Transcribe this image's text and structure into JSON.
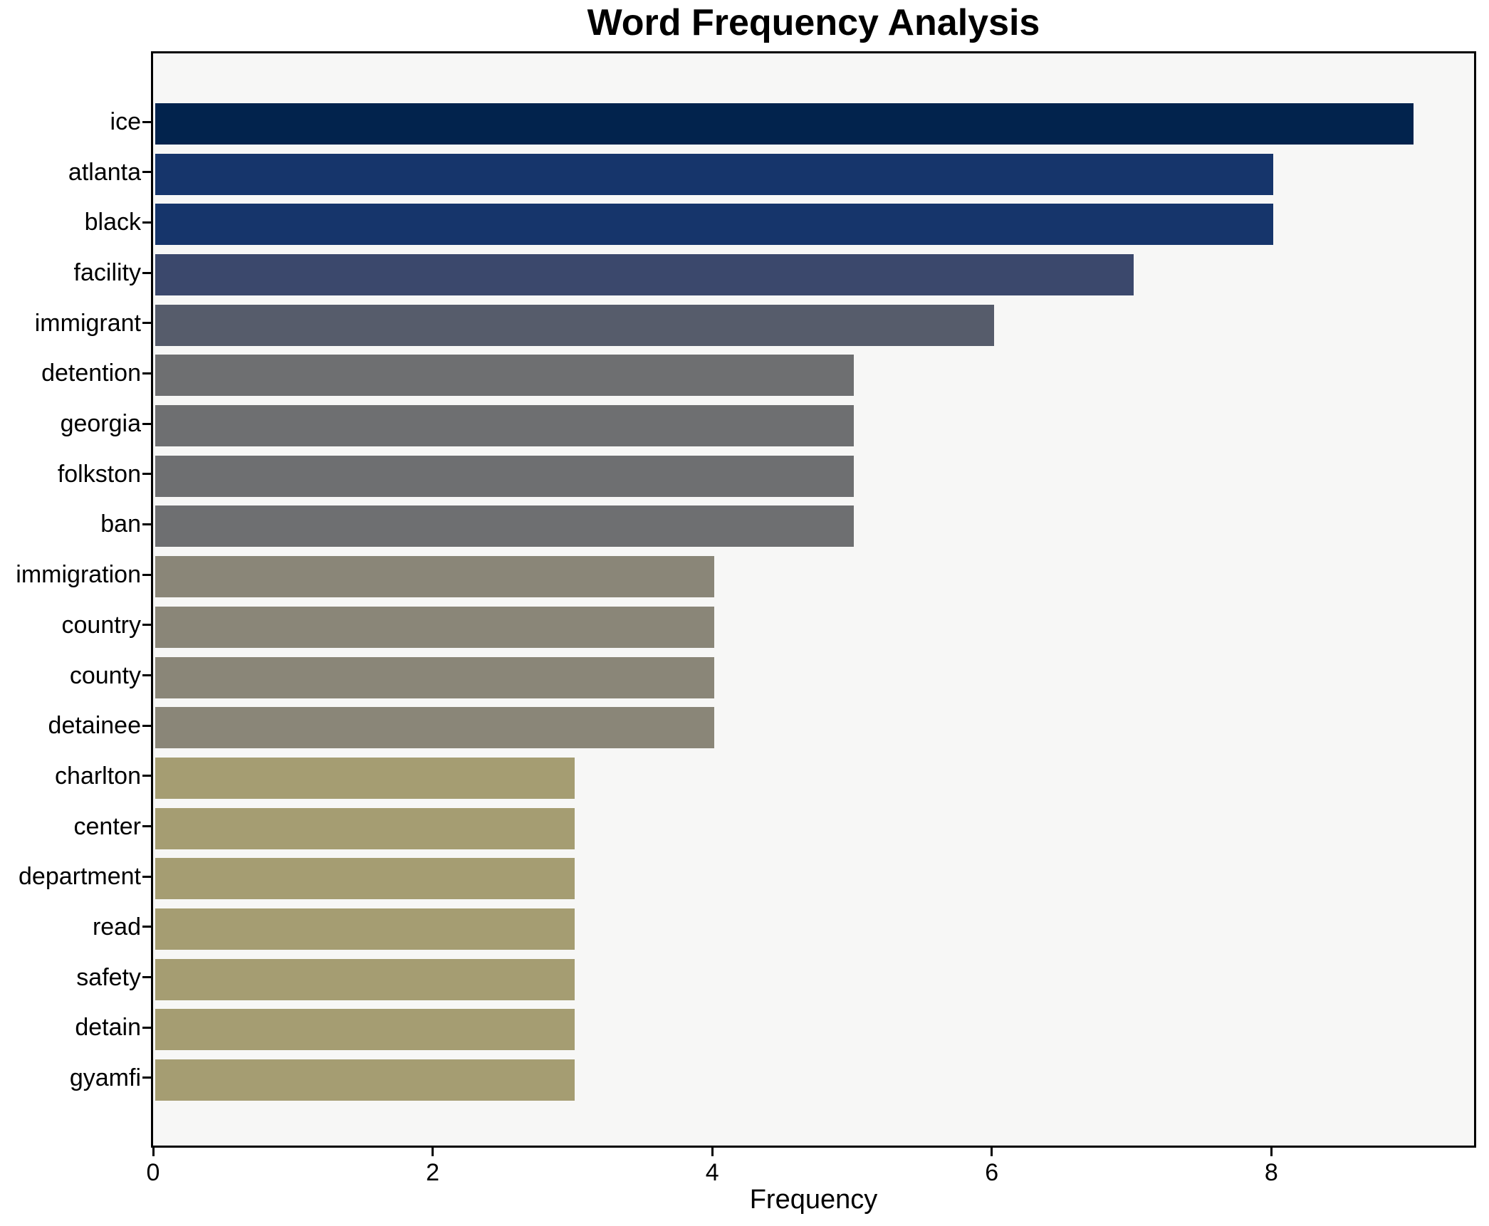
{
  "chart_data": {
    "type": "bar",
    "orientation": "horizontal",
    "title": "Word Frequency Analysis",
    "xlabel": "Frequency",
    "ylabel": "",
    "categories": [
      "ice",
      "atlanta",
      "black",
      "facility",
      "immigrant",
      "detention",
      "georgia",
      "folkston",
      "ban",
      "immigration",
      "country",
      "county",
      "detainee",
      "charlton",
      "center",
      "department",
      "read",
      "safety",
      "detain",
      "gyamfi"
    ],
    "values": [
      9,
      8,
      8,
      7,
      6,
      5,
      5,
      5,
      5,
      4,
      4,
      4,
      4,
      3,
      3,
      3,
      3,
      3,
      3,
      3
    ],
    "bar_colors": [
      "#02234d",
      "#16356b",
      "#16356b",
      "#3b486c",
      "#565c6b",
      "#6e6f71",
      "#6e6f71",
      "#6e6f71",
      "#6e6f71",
      "#8a8678",
      "#8a8678",
      "#8a8678",
      "#8a8678",
      "#a59d72",
      "#a59d72",
      "#a59d72",
      "#a59d72",
      "#a59d72",
      "#a59d72",
      "#a59d72"
    ],
    "xlim": [
      0,
      9.45
    ],
    "xticks": [
      0,
      2,
      4,
      6,
      8
    ],
    "grid": false,
    "legend": false,
    "plot_background": "#f7f7f6",
    "figure_background": "#ffffff",
    "spine_color": "#000000",
    "text_color": "#000000"
  }
}
